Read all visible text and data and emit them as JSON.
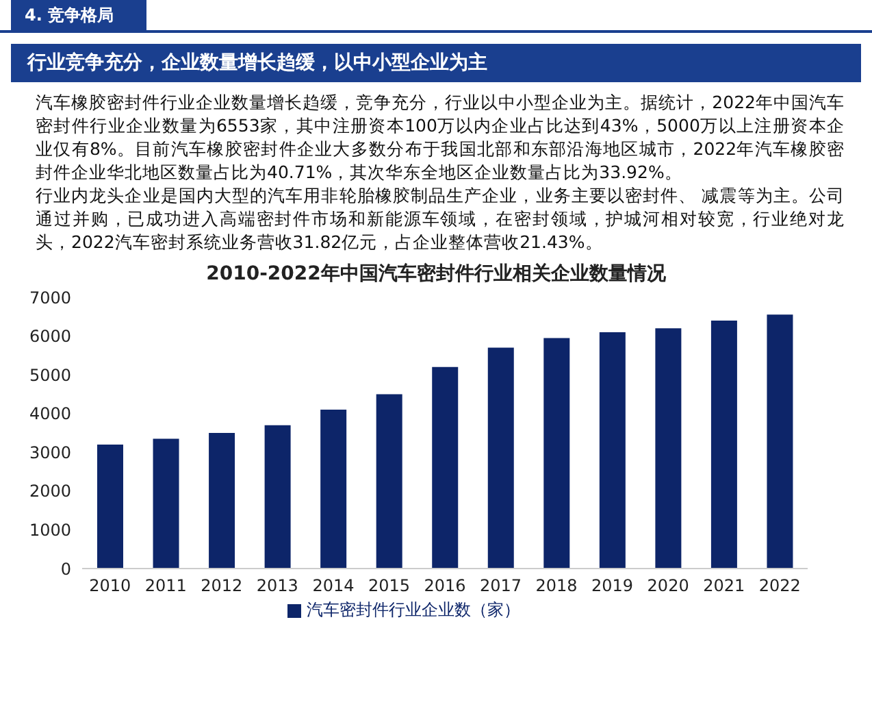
{
  "chart_data": {
    "type": "bar",
    "title": "行业竞争充分，企业数量增长趋缓，以中小型企业为主",
    "subtitle": "2010-2022年中国汽车密封件行业相关企业数量情况",
    "annotations": [
      "4. 竞争格局",
      "汽车橡胶密封件行业企业数量增长趋缓，竞争充分，行业以中小型企业为主。据统计，2022年中国汽车密封件行业企业数量为6553家，其中注册资本100万以内企业占比达到43%，5000万以上注册资本企业仅有8%。目前汽车橡胶密封件企业大多数分布于我国北部和东部沿海地区城市，2022年汽车橡胶密封件企业华北地区数量占比为40.71%，其次华东全地区企业数量占比为33.92%。",
      "行业内龙头企业是国内大型的汽车用非轮胎橡胶制品生产企业，业务主要以密封件、 减震等为主。公司通过并购，已成功进入高端密封件市场和新能源车领域，在密封领域，护城河相对较宽，行业绝对龙头，2022汽车密封系统业务营收31.82亿元，占企业整体营收21.43%。"
    ],
    "categories": [
      "2010",
      "2011",
      "2012",
      "2013",
      "2014",
      "2015",
      "2016",
      "2017",
      "2018",
      "2019",
      "2020",
      "2021",
      "2022"
    ],
    "series": [
      {
        "name": "汽车密封件行业企业数（家）",
        "color": "#0d2569",
        "values": [
          3200,
          3350,
          3500,
          3700,
          4100,
          4500,
          5200,
          5700,
          5950,
          6100,
          6200,
          6400,
          6553
        ]
      }
    ],
    "ylim": [
      0,
      7000
    ],
    "yticks": [
      0,
      1000,
      2000,
      3000,
      4000,
      5000,
      6000,
      7000
    ],
    "grid": false,
    "legend": "bottom"
  }
}
